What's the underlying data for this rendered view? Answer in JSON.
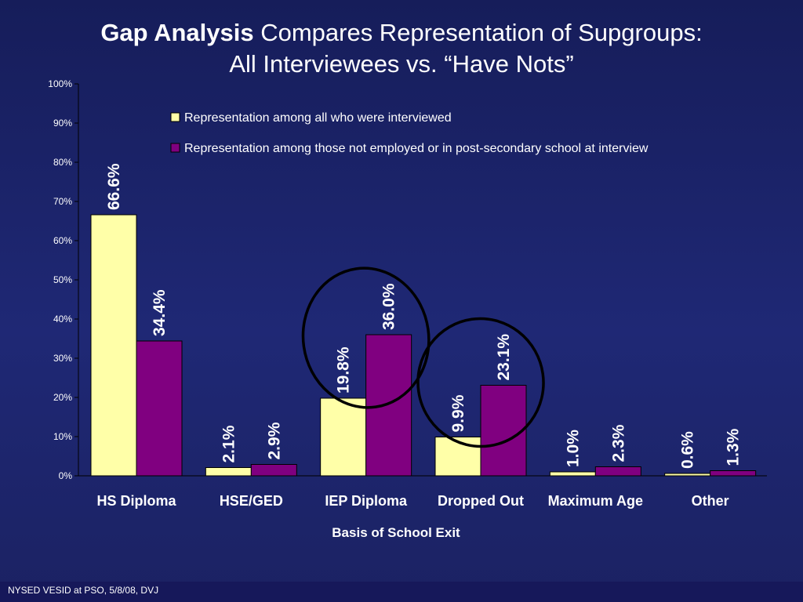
{
  "title": {
    "bold_part": "Gap Analysis",
    "rest_line1": " Compares Representation of Supgroups:",
    "line2": "All Interviewees  vs.  “Have Nots”"
  },
  "footer": "NYSED VESID at PSO, 5/8/08, DVJ",
  "colors": {
    "series1": "#ffffa8",
    "series2": "#800080",
    "axis": "#000000",
    "highlight_ellipse": "#000000"
  },
  "chart_data": {
    "type": "bar",
    "title": "Gap Analysis Compares Representation of Supgroups: All Interviewees  vs.  “Have Nots”",
    "xlabel": "Basis of School Exit",
    "ylabel": "",
    "ylim": [
      0,
      100
    ],
    "yticks": [
      "0%",
      "10%",
      "20%",
      "30%",
      "40%",
      "50%",
      "60%",
      "70%",
      "80%",
      "90%",
      "100%"
    ],
    "categories": [
      "HS Diploma",
      "HSE/GED",
      "IEP Diploma",
      "Dropped Out",
      "Maximum Age",
      "Other"
    ],
    "series": [
      {
        "name": "Representation among all who were interviewed",
        "values": [
          66.6,
          2.1,
          19.8,
          9.9,
          1.0,
          0.6
        ],
        "labels": [
          "66.6%",
          "2.1%",
          "19.8%",
          "9.9%",
          "1.0%",
          "0.6%"
        ]
      },
      {
        "name": "Representation among those not employed or in post-secondary school at interview",
        "values": [
          34.4,
          2.9,
          36.0,
          23.1,
          2.3,
          1.3
        ],
        "labels": [
          "34.4%",
          "2.9%",
          "36.0%",
          "23.1%",
          "2.3%",
          "1.3%"
        ]
      }
    ],
    "legend_position": "top-right",
    "grid": false,
    "highlighted_categories": [
      "IEP Diploma",
      "Dropped Out"
    ]
  }
}
